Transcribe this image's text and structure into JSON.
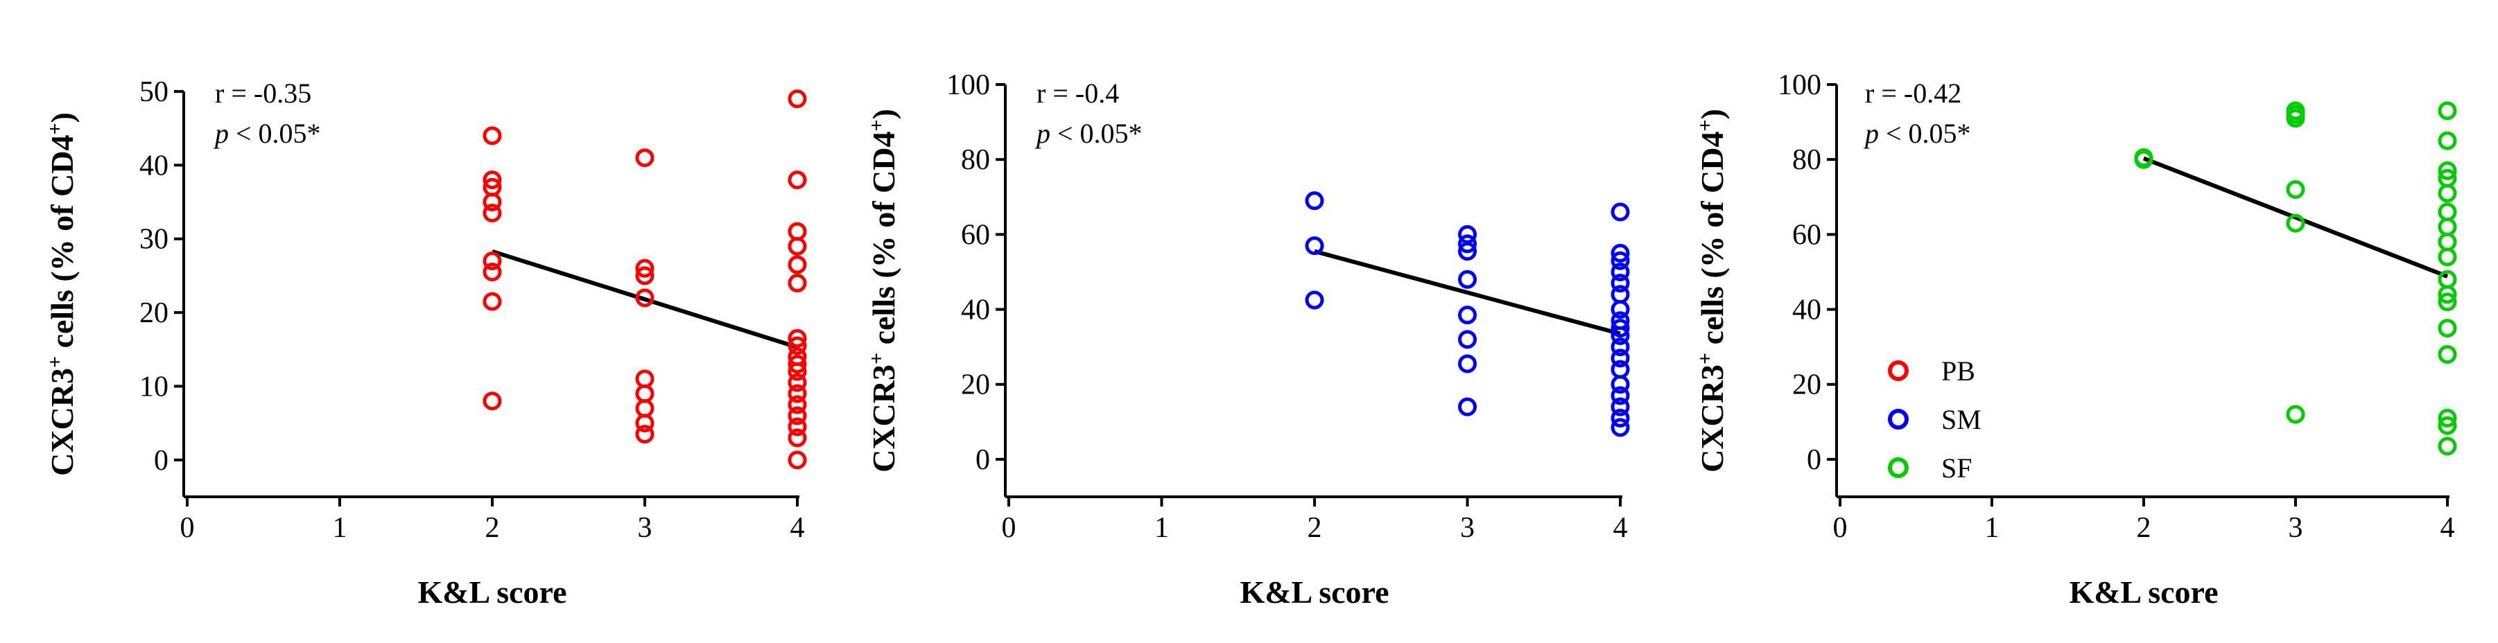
{
  "chart_data": [
    {
      "type": "scatter",
      "panel": "PB",
      "color": "#ff0000",
      "ylabel_main": "CXCR3",
      "ylabel_sup1": "+",
      "ylabel_mid": " cells (% of CD4",
      "ylabel_sup2": "+",
      "ylabel_end": ")",
      "xlabel": "K&L score",
      "xlim": [
        0,
        4
      ],
      "ylim": [
        -5,
        50
      ],
      "xticks": [
        0,
        1,
        2,
        3,
        4
      ],
      "yticks": [
        0,
        10,
        20,
        30,
        40,
        50
      ],
      "stat_r": "r = -0.35",
      "stat_p_symbol": "p",
      "stat_p_rest": " < 0.05*",
      "points": [
        [
          2,
          44
        ],
        [
          2,
          38
        ],
        [
          2,
          37
        ],
        [
          2,
          35
        ],
        [
          2,
          33.5
        ],
        [
          2,
          27
        ],
        [
          2,
          25.5
        ],
        [
          2,
          21.5
        ],
        [
          2,
          8
        ],
        [
          3,
          41
        ],
        [
          3,
          26
        ],
        [
          3,
          25
        ],
        [
          3,
          22
        ],
        [
          3,
          11
        ],
        [
          3,
          9
        ],
        [
          3,
          7
        ],
        [
          3,
          5
        ],
        [
          3,
          3.5
        ],
        [
          4,
          49
        ],
        [
          4,
          38
        ],
        [
          4,
          31
        ],
        [
          4,
          29
        ],
        [
          4,
          26.5
        ],
        [
          4,
          24
        ],
        [
          4,
          16.5
        ],
        [
          4,
          15.5
        ],
        [
          4,
          14
        ],
        [
          4,
          13
        ],
        [
          4,
          12
        ],
        [
          4,
          10.5
        ],
        [
          4,
          9
        ],
        [
          4,
          7.5
        ],
        [
          4,
          6
        ],
        [
          4,
          4.5
        ],
        [
          4,
          3
        ],
        [
          4,
          0
        ]
      ],
      "fit": [
        [
          2,
          28.3
        ],
        [
          4,
          15.3
        ]
      ]
    },
    {
      "type": "scatter",
      "panel": "SM",
      "color": "#0000ff",
      "ylabel_main": "CXCR3",
      "ylabel_sup1": "+",
      "ylabel_mid": " cells (% of CD4",
      "ylabel_sup2": "+",
      "ylabel_end": ")",
      "xlabel": "K&L score",
      "xlim": [
        0,
        4
      ],
      "ylim": [
        -10,
        100
      ],
      "xticks": [
        0,
        1,
        2,
        3,
        4
      ],
      "yticks": [
        0,
        20,
        40,
        60,
        80,
        100
      ],
      "stat_r": "r = -0.4",
      "stat_p_symbol": "p",
      "stat_p_rest": " < 0.05*",
      "points": [
        [
          2,
          69
        ],
        [
          2,
          57
        ],
        [
          2,
          42.5
        ],
        [
          3,
          60
        ],
        [
          3,
          57.5
        ],
        [
          3,
          55.5
        ],
        [
          3,
          48
        ],
        [
          3,
          38.5
        ],
        [
          3,
          32
        ],
        [
          3,
          25.5
        ],
        [
          3,
          14
        ],
        [
          4,
          66
        ],
        [
          4,
          55
        ],
        [
          4,
          53
        ],
        [
          4,
          50
        ],
        [
          4,
          47
        ],
        [
          4,
          44
        ],
        [
          4,
          40
        ],
        [
          4,
          37
        ],
        [
          4,
          35
        ],
        [
          4,
          33
        ],
        [
          4,
          30
        ],
        [
          4,
          27
        ],
        [
          4,
          24
        ],
        [
          4,
          20
        ],
        [
          4,
          17
        ],
        [
          4,
          14
        ],
        [
          4,
          11
        ],
        [
          4,
          8.5
        ]
      ],
      "fit": [
        [
          2,
          55.5
        ],
        [
          4,
          33.5
        ]
      ]
    },
    {
      "type": "scatter",
      "panel": "SF",
      "color": "#00cc00",
      "ylabel_main": "CXCR3",
      "ylabel_sup1": "+",
      "ylabel_mid": " cells (% of CD4",
      "ylabel_sup2": "+",
      "ylabel_end": ")",
      "xlabel": "K&L score",
      "xlim": [
        0,
        4
      ],
      "ylim": [
        -10,
        100
      ],
      "xticks": [
        0,
        1,
        2,
        3,
        4
      ],
      "yticks": [
        0,
        20,
        40,
        60,
        80,
        100
      ],
      "stat_r": "r = -0.42",
      "stat_p_symbol": "p",
      "stat_p_rest": " < 0.05*",
      "points": [
        [
          2,
          80.5
        ],
        [
          2,
          80
        ],
        [
          3,
          93
        ],
        [
          3,
          92
        ],
        [
          3,
          91
        ],
        [
          3,
          72
        ],
        [
          3,
          63
        ],
        [
          3,
          12
        ],
        [
          4,
          93
        ],
        [
          4,
          85
        ],
        [
          4,
          77
        ],
        [
          4,
          75
        ],
        [
          4,
          71
        ],
        [
          4,
          66
        ],
        [
          4,
          62
        ],
        [
          4,
          58
        ],
        [
          4,
          54
        ],
        [
          4,
          48
        ],
        [
          4,
          44
        ],
        [
          4,
          42
        ],
        [
          4,
          35
        ],
        [
          4,
          28
        ],
        [
          4,
          11
        ],
        [
          4,
          9
        ],
        [
          4,
          3.5
        ]
      ],
      "fit": [
        [
          2,
          80.3
        ],
        [
          4,
          48.8
        ]
      ]
    }
  ],
  "legend": [
    {
      "label": "PB",
      "color": "#ff0000"
    },
    {
      "label": "SM",
      "color": "#0000ff"
    },
    {
      "label": "SF",
      "color": "#00cc00"
    }
  ]
}
